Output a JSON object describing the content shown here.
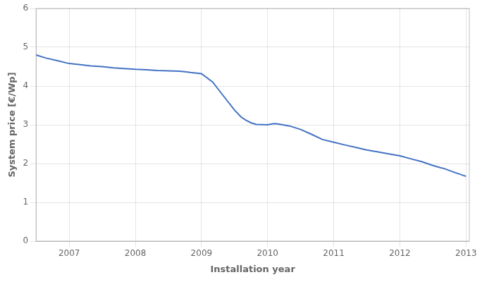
{
  "chart_data": {
    "type": "line",
    "x": [
      2006.5,
      2006.65,
      2006.83,
      2007.0,
      2007.17,
      2007.33,
      2007.5,
      2007.67,
      2007.83,
      2008.0,
      2008.17,
      2008.33,
      2008.5,
      2008.67,
      2008.75,
      2008.83,
      2009.0,
      2009.17,
      2009.33,
      2009.5,
      2009.6,
      2009.67,
      2009.75,
      2009.83,
      2010.0,
      2010.1,
      2010.17,
      2010.33,
      2010.5,
      2010.67,
      2010.83,
      2011.0,
      2011.17,
      2011.33,
      2011.5,
      2011.67,
      2011.83,
      2012.0,
      2012.17,
      2012.33,
      2012.5,
      2012.6,
      2012.67,
      2012.75,
      2012.83,
      2013.0
    ],
    "values": [
      4.8,
      4.72,
      4.65,
      4.58,
      4.55,
      4.52,
      4.5,
      4.47,
      4.45,
      4.43,
      4.42,
      4.4,
      4.39,
      4.38,
      4.37,
      4.35,
      4.32,
      4.1,
      3.75,
      3.38,
      3.2,
      3.12,
      3.05,
      3.01,
      3.0,
      3.03,
      3.02,
      2.97,
      2.88,
      2.75,
      2.62,
      2.55,
      2.48,
      2.42,
      2.35,
      2.3,
      2.25,
      2.2,
      2.12,
      2.05,
      1.95,
      1.9,
      1.87,
      1.82,
      1.77,
      1.67
    ],
    "color": "#4472C4",
    "xlabel": "Installation year",
    "ylabel": "System price [€/Wp]",
    "xlim": [
      2006.5,
      2013.05
    ],
    "ylim": [
      0,
      6
    ],
    "xticks": [
      2007,
      2008,
      2009,
      2010,
      2011,
      2012,
      2013
    ],
    "yticks": [
      0,
      1,
      2,
      3,
      4,
      5,
      6
    ],
    "grid": true
  }
}
